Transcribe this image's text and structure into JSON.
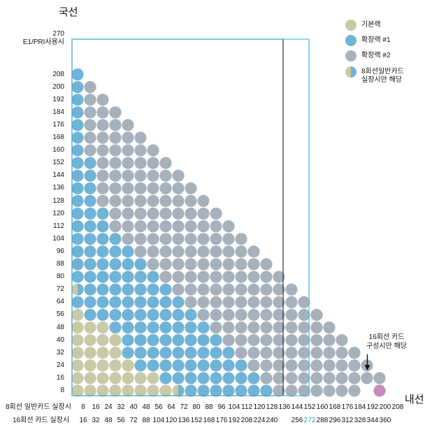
{
  "axes": {
    "y_title": "국선",
    "x_title": "내선",
    "y_top_labels": [
      "270",
      "E1/PRI사용시"
    ],
    "y_labels": [
      "208",
      "200",
      "192",
      "184",
      "176",
      "168",
      "160",
      "152",
      "144",
      "136",
      "128",
      "120",
      "112",
      "104",
      "96",
      "88",
      "80",
      "72",
      "64",
      "56",
      "48",
      "40",
      "32",
      "24",
      "16",
      "8"
    ],
    "x_row1_title": "8회선 일반카드 실장시",
    "x_row1": [
      "8",
      "16",
      "24",
      "32",
      "40",
      "48",
      "56",
      "64",
      "72",
      "80",
      "88",
      "96",
      "104",
      "112",
      "120",
      "128",
      "136",
      "144",
      "152",
      "160",
      "168",
      "176",
      "184",
      "192",
      "200",
      "208"
    ],
    "x_row2_title": "16회선 카드 실장시",
    "x_row2": [
      "16",
      "32",
      "48",
      "56",
      "72",
      "88",
      "104",
      "120",
      "136",
      "152",
      "168",
      "176",
      "192",
      "208",
      "224",
      "240",
      "",
      "256",
      "272",
      "288",
      "296",
      "312",
      "328",
      "344",
      "360",
      ""
    ],
    "x_row2_highlight": "272"
  },
  "legend": [
    {
      "label": "기본랙",
      "color": "#c8c9a7",
      "icon": "dot-basic"
    },
    {
      "label": "확장랙 #1",
      "color": "#6fb3d6",
      "icon": "dot-ext1"
    },
    {
      "label": "확장랙 #2",
      "color": "#a6b1bc",
      "icon": "dot-ext2"
    },
    {
      "label": "8회선일반카드\n실장시만 해당",
      "color": "split",
      "icon": "dot-split"
    }
  ],
  "annotation": {
    "text": "16회선 카드\n구성시만 해당",
    "color": "#c88bbd"
  },
  "colors": {
    "basic": "#c8c9a7",
    "ext1": "#6fb3d6",
    "ext2": "#a6b1bc",
    "special": "#c88bbd",
    "frame_dark": "#333333",
    "frame_blue": "#4bb7de"
  },
  "grid": {
    "rows": 26,
    "cols": 25,
    "ext1_boundary_by_row": [
      1,
      1,
      1,
      1,
      1,
      1,
      1,
      1,
      1,
      1,
      1,
      1,
      1,
      1,
      2,
      2,
      3,
      3,
      3,
      3,
      4,
      5,
      6,
      7,
      9,
      13
    ],
    "basic_rows": {
      "8": 9,
      "16": 7,
      "24": 5,
      "32": 4,
      "40": 4,
      "48": 3,
      "56": 1
    },
    "split_cells": [
      {
        "row": 72,
        "col": 1
      },
      {
        "row": 8,
        "col": 9
      }
    ]
  }
}
